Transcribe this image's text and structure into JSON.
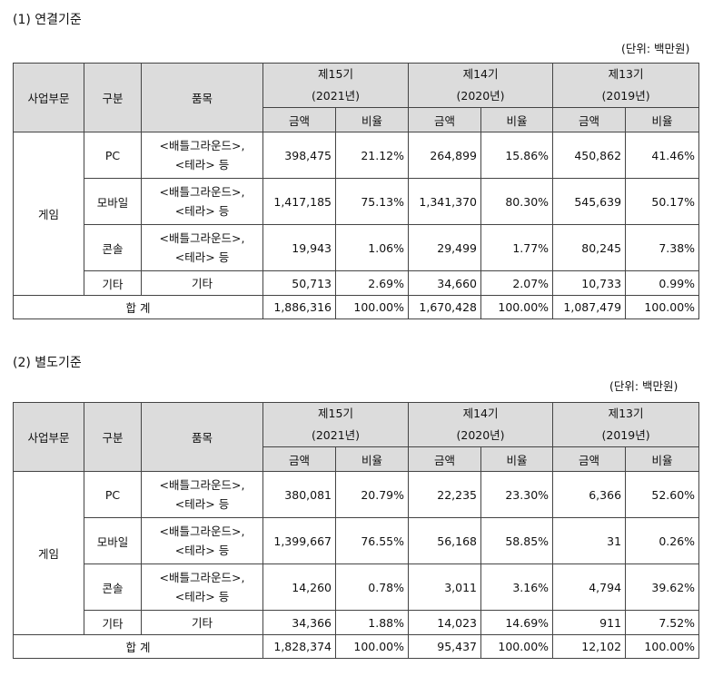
{
  "headers": {
    "segment": "사업부문",
    "category": "구분",
    "product": "품목",
    "periods": [
      {
        "name": "제15기",
        "year": "(2021년)"
      },
      {
        "name": "제14기",
        "year": "(2020년)"
      },
      {
        "name": "제13기",
        "year": "(2019년)"
      }
    ],
    "amount": "금액",
    "ratio": "비율"
  },
  "sections": [
    {
      "title": "(1) 연결기준",
      "unit": "(단위: 백만원)",
      "segment": "게임",
      "rows": [
        {
          "category": "PC",
          "product": [
            "<배틀그라운드>,",
            "<테라> 등"
          ],
          "values": [
            "398,475",
            "21.12%",
            "264,899",
            "15.86%",
            "450,862",
            "41.46%"
          ]
        },
        {
          "category": "모바일",
          "product": [
            "<배틀그라운드>,",
            "<테라> 등"
          ],
          "values": [
            "1,417,185",
            "75.13%",
            "1,341,370",
            "80.30%",
            "545,639",
            "50.17%"
          ]
        },
        {
          "category": "콘솔",
          "product": [
            "<배틀그라운드>,",
            "<테라> 등"
          ],
          "values": [
            "19,943",
            "1.06%",
            "29,499",
            "1.77%",
            "80,245",
            "7.38%"
          ]
        },
        {
          "category": "기타",
          "product": [
            "기타"
          ],
          "values": [
            "50,713",
            "2.69%",
            "34,660",
            "2.07%",
            "10,733",
            "0.99%"
          ]
        }
      ],
      "total": {
        "label": "합 계",
        "values": [
          "1,886,316",
          "100.00%",
          "1,670,428",
          "100.00%",
          "1,087,479",
          "100.00%"
        ]
      }
    },
    {
      "title": "(2) 별도기준",
      "unit": "(단위: 백만원)",
      "segment": "게임",
      "rows": [
        {
          "category": "PC",
          "product": [
            "<배틀그라운드>,",
            "<테라> 등"
          ],
          "values": [
            "380,081",
            "20.79%",
            "22,235",
            "23.30%",
            "6,366",
            "52.60%"
          ]
        },
        {
          "category": "모바일",
          "product": [
            "<배틀그라운드>,",
            "<테라> 등"
          ],
          "values": [
            "1,399,667",
            "76.55%",
            "56,168",
            "58.85%",
            "31",
            "0.26%"
          ]
        },
        {
          "category": "콘솔",
          "product": [
            "<배틀그라운드>,",
            "<테라> 등"
          ],
          "values": [
            "14,260",
            "0.78%",
            "3,011",
            "3.16%",
            "4,794",
            "39.62%"
          ]
        },
        {
          "category": "기타",
          "product": [
            "기타"
          ],
          "values": [
            "34,366",
            "1.88%",
            "14,023",
            "14.69%",
            "911",
            "7.52%"
          ]
        }
      ],
      "total": {
        "label": "합 계",
        "values": [
          "1,828,374",
          "100.00%",
          "95,437",
          "100.00%",
          "12,102",
          "100.00%"
        ]
      }
    }
  ]
}
